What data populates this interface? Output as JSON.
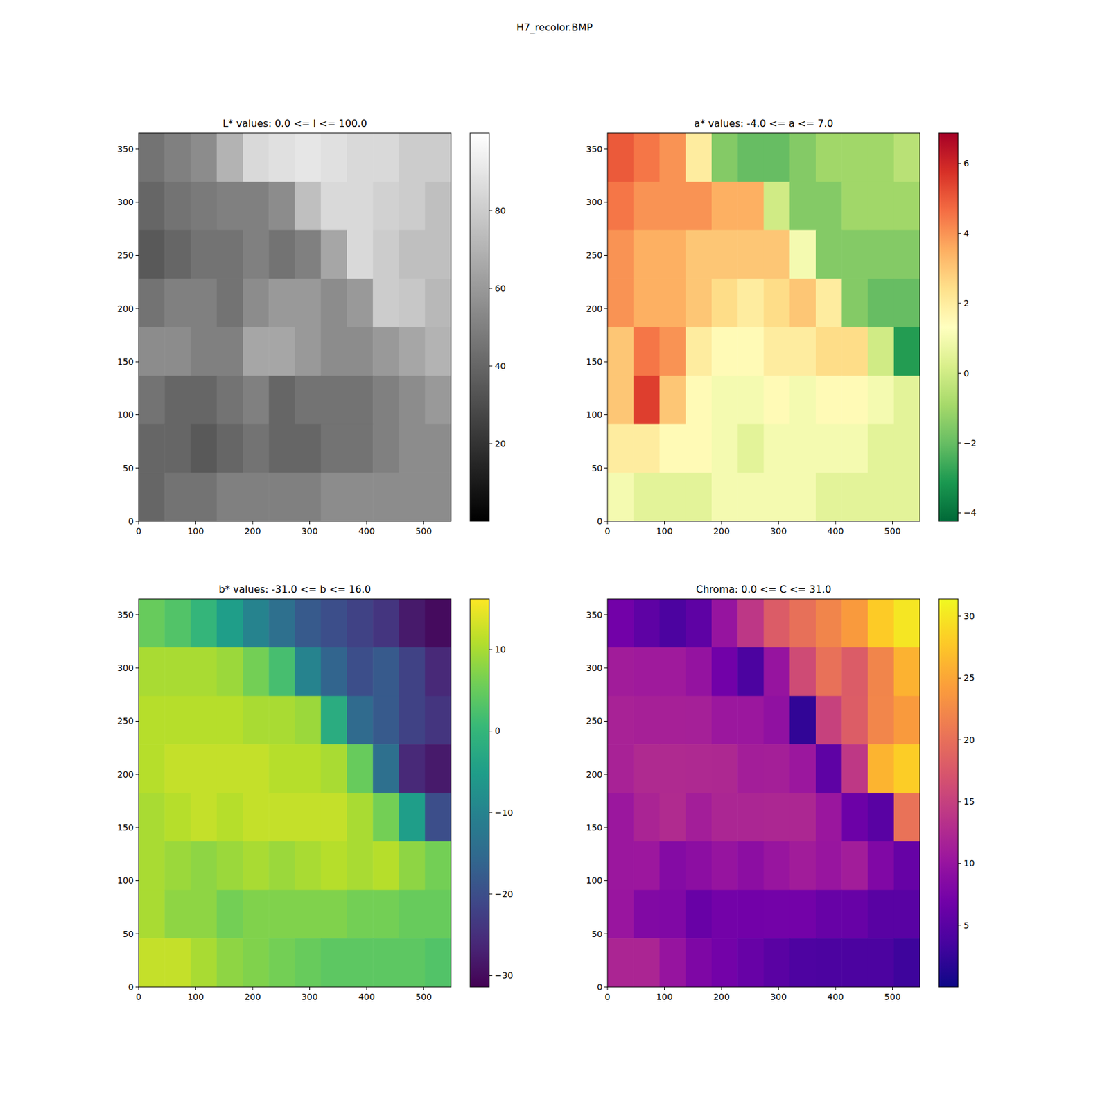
{
  "title": "H7_recolor.BMP",
  "chart_data": [
    {
      "type": "heatmap",
      "title": "L* values: 0.0 <= l <= 100.0",
      "color": "gray",
      "xlim": [
        0,
        548
      ],
      "ylim": [
        0,
        365
      ],
      "xticks": [
        0,
        100,
        200,
        300,
        400,
        500
      ],
      "yticks": [
        0,
        50,
        100,
        150,
        200,
        250,
        300,
        350
      ],
      "colorbar_lim": [
        0,
        100
      ],
      "colorbar_ticks": [
        20,
        40,
        60,
        80
      ],
      "cells": [
        [
          45,
          50,
          55,
          70,
          85,
          88,
          90,
          88,
          85,
          85,
          80,
          80
        ],
        [
          40,
          45,
          48,
          50,
          50,
          55,
          75,
          85,
          85,
          82,
          80,
          75
        ],
        [
          35,
          40,
          45,
          45,
          50,
          45,
          50,
          65,
          85,
          80,
          75,
          75
        ],
        [
          45,
          50,
          50,
          45,
          55,
          60,
          60,
          55,
          60,
          80,
          78,
          72
        ],
        [
          55,
          55,
          50,
          50,
          65,
          65,
          60,
          55,
          55,
          60,
          65,
          70
        ],
        [
          45,
          40,
          40,
          45,
          50,
          40,
          45,
          45,
          45,
          50,
          55,
          60
        ],
        [
          40,
          40,
          35,
          40,
          45,
          40,
          40,
          45,
          45,
          50,
          55,
          55
        ],
        [
          40,
          45,
          45,
          50,
          50,
          50,
          50,
          55,
          55,
          55,
          55,
          55
        ]
      ]
    },
    {
      "type": "heatmap",
      "title": "a* values: -4.0 <= a <= 7.0",
      "color": "RdYlGn_r",
      "xlim": [
        0,
        548
      ],
      "ylim": [
        0,
        365
      ],
      "xticks": [
        0,
        100,
        200,
        300,
        400,
        500
      ],
      "yticks": [
        0,
        50,
        100,
        150,
        200,
        250,
        300,
        350
      ],
      "colorbar_lim": [
        -4.24,
        6.87
      ],
      "colorbar_ticks": [
        {
          "value": -4,
          "label": "−4"
        },
        {
          "value": -2,
          "label": "−2"
        },
        0,
        2,
        4,
        6
      ],
      "cells": [
        [
          5,
          4.5,
          4,
          2,
          -1.5,
          -2,
          -2,
          -1.5,
          -1,
          -1,
          -1,
          -0.5
        ],
        [
          4.5,
          4,
          4,
          4,
          3.5,
          3.5,
          0,
          -1.5,
          -1.5,
          -1,
          -1,
          -1
        ],
        [
          4,
          3.5,
          3.5,
          3,
          3,
          3,
          3,
          1,
          -1.5,
          -1.5,
          -1.5,
          -1.5
        ],
        [
          4,
          3.5,
          3.5,
          3,
          2.5,
          2,
          2.5,
          3,
          2,
          -1.5,
          -2,
          -2
        ],
        [
          3,
          4.5,
          4,
          2,
          1.5,
          1.5,
          2,
          2,
          2.5,
          2.5,
          0,
          -3
        ],
        [
          3,
          5.5,
          3,
          1.5,
          1,
          1,
          1.5,
          1,
          1.5,
          1.5,
          1,
          0.5
        ],
        [
          2,
          2,
          1.5,
          1.5,
          1,
          0.5,
          1,
          1,
          1,
          1,
          0.5,
          0.5
        ],
        [
          1,
          0.5,
          0.5,
          0.5,
          1,
          1,
          1,
          1,
          0.5,
          0.5,
          0.5,
          0.5
        ]
      ]
    },
    {
      "type": "heatmap",
      "title": "b* values: -31.0 <= b <= 16.0",
      "color": "viridis",
      "xlim": [
        0,
        548
      ],
      "ylim": [
        0,
        365
      ],
      "xticks": [
        0,
        100,
        200,
        300,
        400,
        500
      ],
      "yticks": [
        0,
        50,
        100,
        150,
        200,
        250,
        300,
        350
      ],
      "colorbar_lim": [
        -31.4,
        16.2
      ],
      "colorbar_ticks": [
        {
          "value": -30,
          "label": "−30"
        },
        {
          "value": -20,
          "label": "−20"
        },
        {
          "value": -10,
          "label": "−10"
        },
        0,
        10
      ],
      "cells": [
        [
          5,
          3,
          0,
          -5,
          -10,
          -14,
          -18,
          -20,
          -22,
          -24,
          -28,
          -30
        ],
        [
          10,
          10,
          10,
          9,
          6,
          2,
          -10,
          -16,
          -20,
          -18,
          -22,
          -26
        ],
        [
          11,
          11,
          11,
          11,
          10,
          10,
          9,
          -2,
          -15,
          -18,
          -22,
          -24
        ],
        [
          11,
          12,
          12,
          12,
          12,
          11,
          11,
          10,
          5,
          -14,
          -26,
          -28
        ],
        [
          10,
          11,
          12,
          11,
          12,
          12,
          12,
          12,
          10,
          6,
          -5,
          -20
        ],
        [
          10,
          9,
          8,
          9,
          10,
          9,
          10,
          11,
          10,
          11,
          8,
          6
        ],
        [
          10,
          8,
          8,
          6,
          7,
          7,
          7,
          7,
          6,
          6,
          5,
          5
        ],
        [
          12,
          12,
          10,
          8,
          7,
          6,
          5,
          4,
          4,
          4,
          4,
          3
        ]
      ]
    },
    {
      "type": "heatmap",
      "title": "Chroma: 0.0 <= C <= 31.0",
      "color": "plasma",
      "xlim": [
        0,
        548
      ],
      "ylim": [
        0,
        365
      ],
      "xticks": [
        0,
        100,
        200,
        300,
        400,
        500
      ],
      "yticks": [
        0,
        50,
        100,
        150,
        200,
        250,
        300,
        350
      ],
      "colorbar_lim": [
        0,
        31.4
      ],
      "colorbar_ticks": [
        5,
        10,
        15,
        20,
        25,
        30
      ],
      "cells": [
        [
          7,
          5.4,
          4,
          5.4,
          10,
          14,
          18,
          20,
          22,
          24,
          28,
          30
        ],
        [
          11,
          10.8,
          10.8,
          9.8,
          6.9,
          4,
          10,
          16.1,
          20.1,
          18,
          22,
          26
        ],
        [
          11.7,
          11.5,
          11.5,
          11.4,
          10.4,
          10.4,
          9.5,
          2.2,
          15.1,
          18.1,
          22.1,
          24
        ],
        [
          11.7,
          12.5,
          12.5,
          12.4,
          12.3,
          11.2,
          11.3,
          10.4,
          5.4,
          14.1,
          26.1,
          28.1
        ],
        [
          10.4,
          11.9,
          12.6,
          11.2,
          12.1,
          12.1,
          12.2,
          12.2,
          10.3,
          6.5,
          5,
          20.2
        ],
        [
          10.4,
          10.5,
          8.5,
          9.1,
          10,
          9.1,
          10.1,
          11,
          10.1,
          11.1,
          8.1,
          6
        ],
        [
          10.2,
          8.2,
          8.1,
          6.2,
          7.1,
          7,
          7.1,
          7.1,
          6.1,
          6.1,
          5,
          5
        ],
        [
          12,
          12,
          10,
          8,
          7.1,
          6.1,
          5.1,
          4.1,
          4,
          4,
          4,
          3
        ]
      ]
    }
  ]
}
